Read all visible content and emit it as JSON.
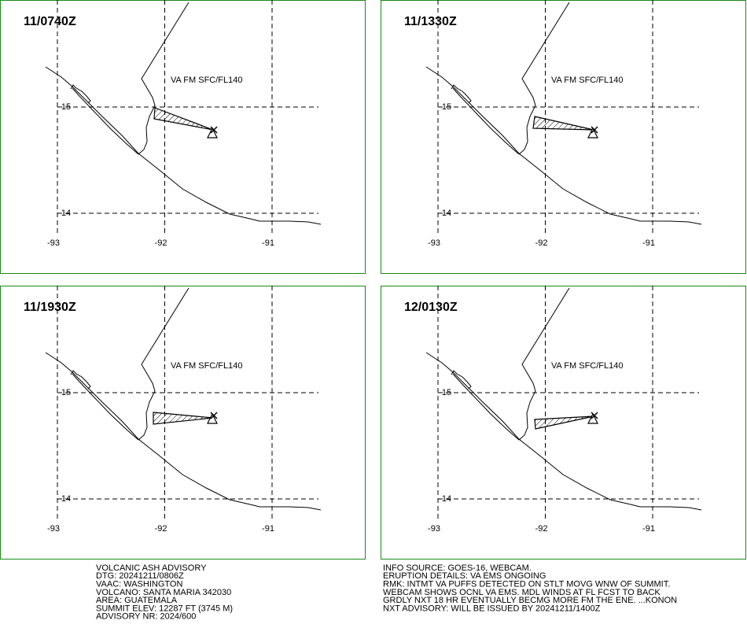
{
  "panels": [
    {
      "time": "11/0740Z",
      "ash_label": "VA FM SFC/FL140"
    },
    {
      "time": "11/1330Z",
      "ash_label": "VA FM SFC/FL140"
    },
    {
      "time": "11/1930Z",
      "ash_label": "VA FM SFC/FL140"
    },
    {
      "time": "12/0130Z",
      "ash_label": "VA FM SFC/FL140"
    }
  ],
  "grid": {
    "lon": [
      -93,
      -92,
      -91
    ],
    "lat": [
      15,
      14
    ]
  },
  "advisory": {
    "left": [
      "VOLCANIC ASH ADVISORY",
      "DTG: 20241211/0806Z",
      "VAAC: WASHINGTON",
      "VOLCANO: SANTA MARIA 342030",
      "AREA: GUATEMALA",
      "SUMMIT ELEV: 12287 FT (3745 M)",
      "ADVISORY NR: 2024/600"
    ],
    "right": [
      "INFO SOURCE: GOES-16, WEBCAM.",
      "ERUPTION DETAILS: VA EMS ONGOING",
      "RMK: INTMT VA PUFFS DETECTED ON STLT MOVG WNW OF SUMMIT.",
      "WEBCAM SHOWS OCNL VA EMS. MDL WINDS AT FL FCST TO BACK",
      "GRDLY NXT 18 HR EVENTUALLY BECMG MORE FM THE ENE. ...KONON",
      "NXT ADVISORY: WILL BE ISSUED BY 20241211/1400Z"
    ]
  }
}
